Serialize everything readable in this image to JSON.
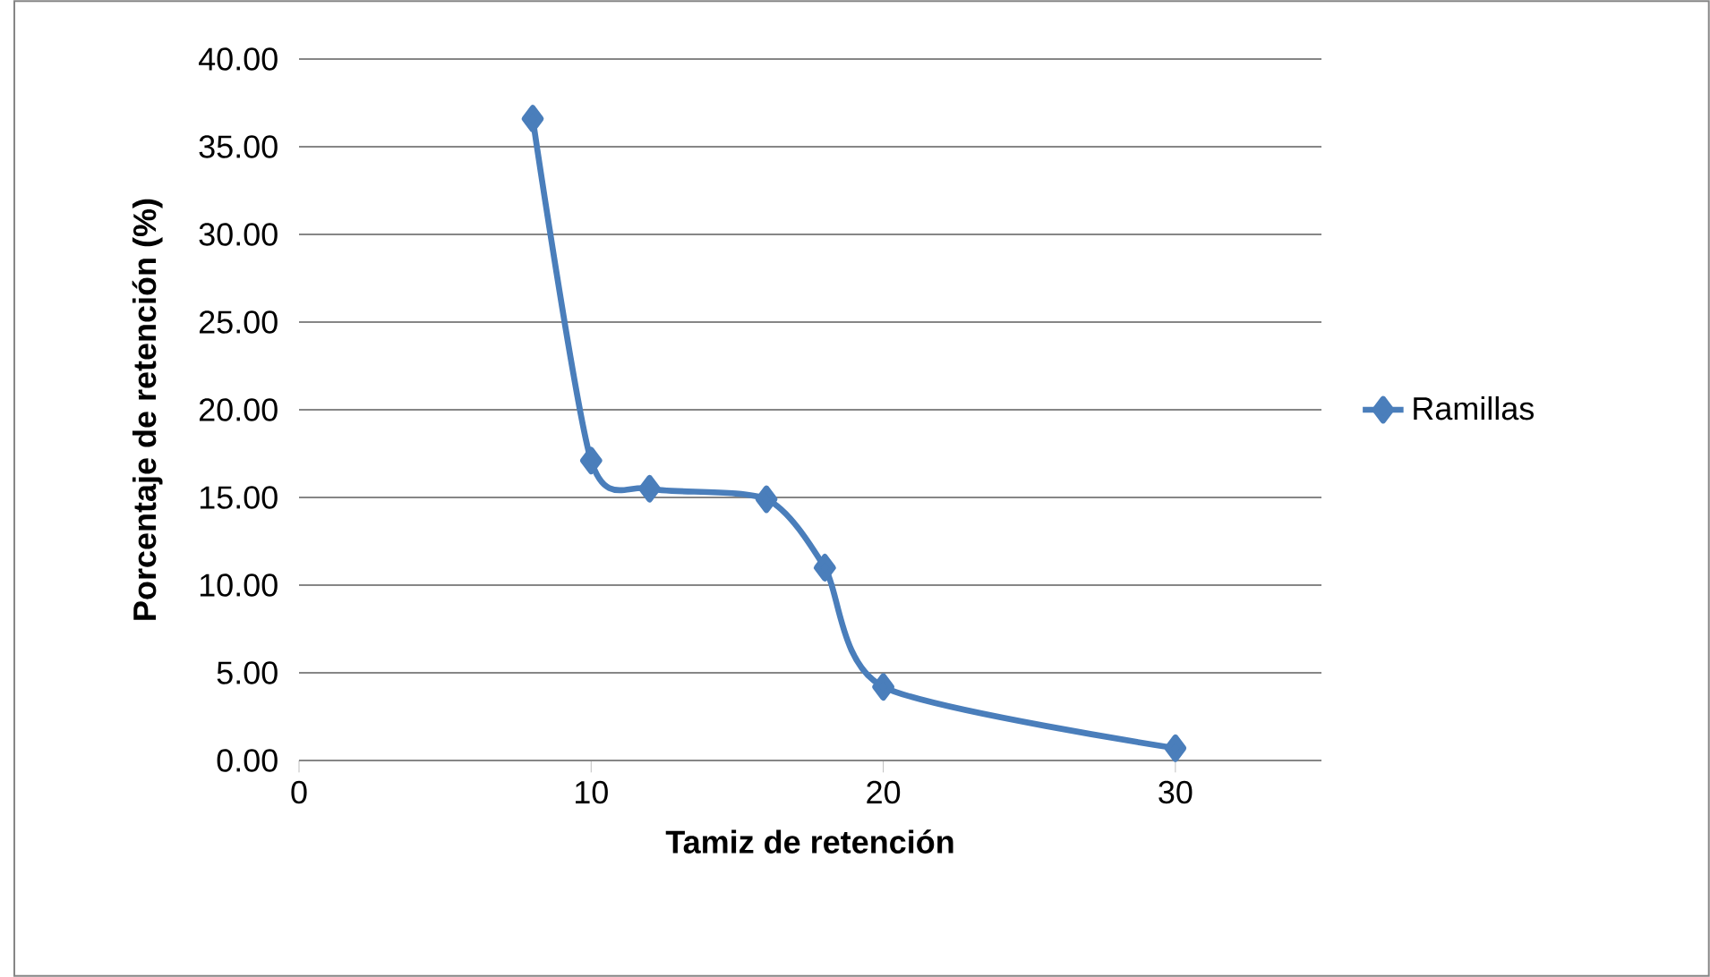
{
  "chart_data": {
    "type": "line",
    "xlabel": "Tamiz de retención",
    "ylabel": "Porcentaje de retención (%)",
    "series": [
      {
        "name": "Ramillas",
        "color": "#4a7ebb",
        "x": [
          8,
          10,
          12,
          16,
          18,
          20,
          30
        ],
        "values": [
          36.6,
          17.1,
          15.5,
          14.9,
          11.0,
          4.2,
          0.7
        ]
      }
    ],
    "xlim": [
      0,
      35
    ],
    "xticks": [
      0,
      10,
      20,
      30
    ],
    "ylim": [
      0,
      40
    ],
    "yticks": [
      {
        "value": 0,
        "label": "0.00"
      },
      {
        "value": 5,
        "label": "5.00"
      },
      {
        "value": 10,
        "label": "10.00"
      },
      {
        "value": 15,
        "label": "15.00"
      },
      {
        "value": 20,
        "label": "20.00"
      },
      {
        "value": 25,
        "label": "25.00"
      },
      {
        "value": 30,
        "label": "30.00"
      },
      {
        "value": 35,
        "label": "35.00"
      },
      {
        "value": 40,
        "label": "40.00"
      }
    ],
    "grid": "y",
    "legend": "right",
    "marker": "diamond",
    "line_style": "solid"
  }
}
